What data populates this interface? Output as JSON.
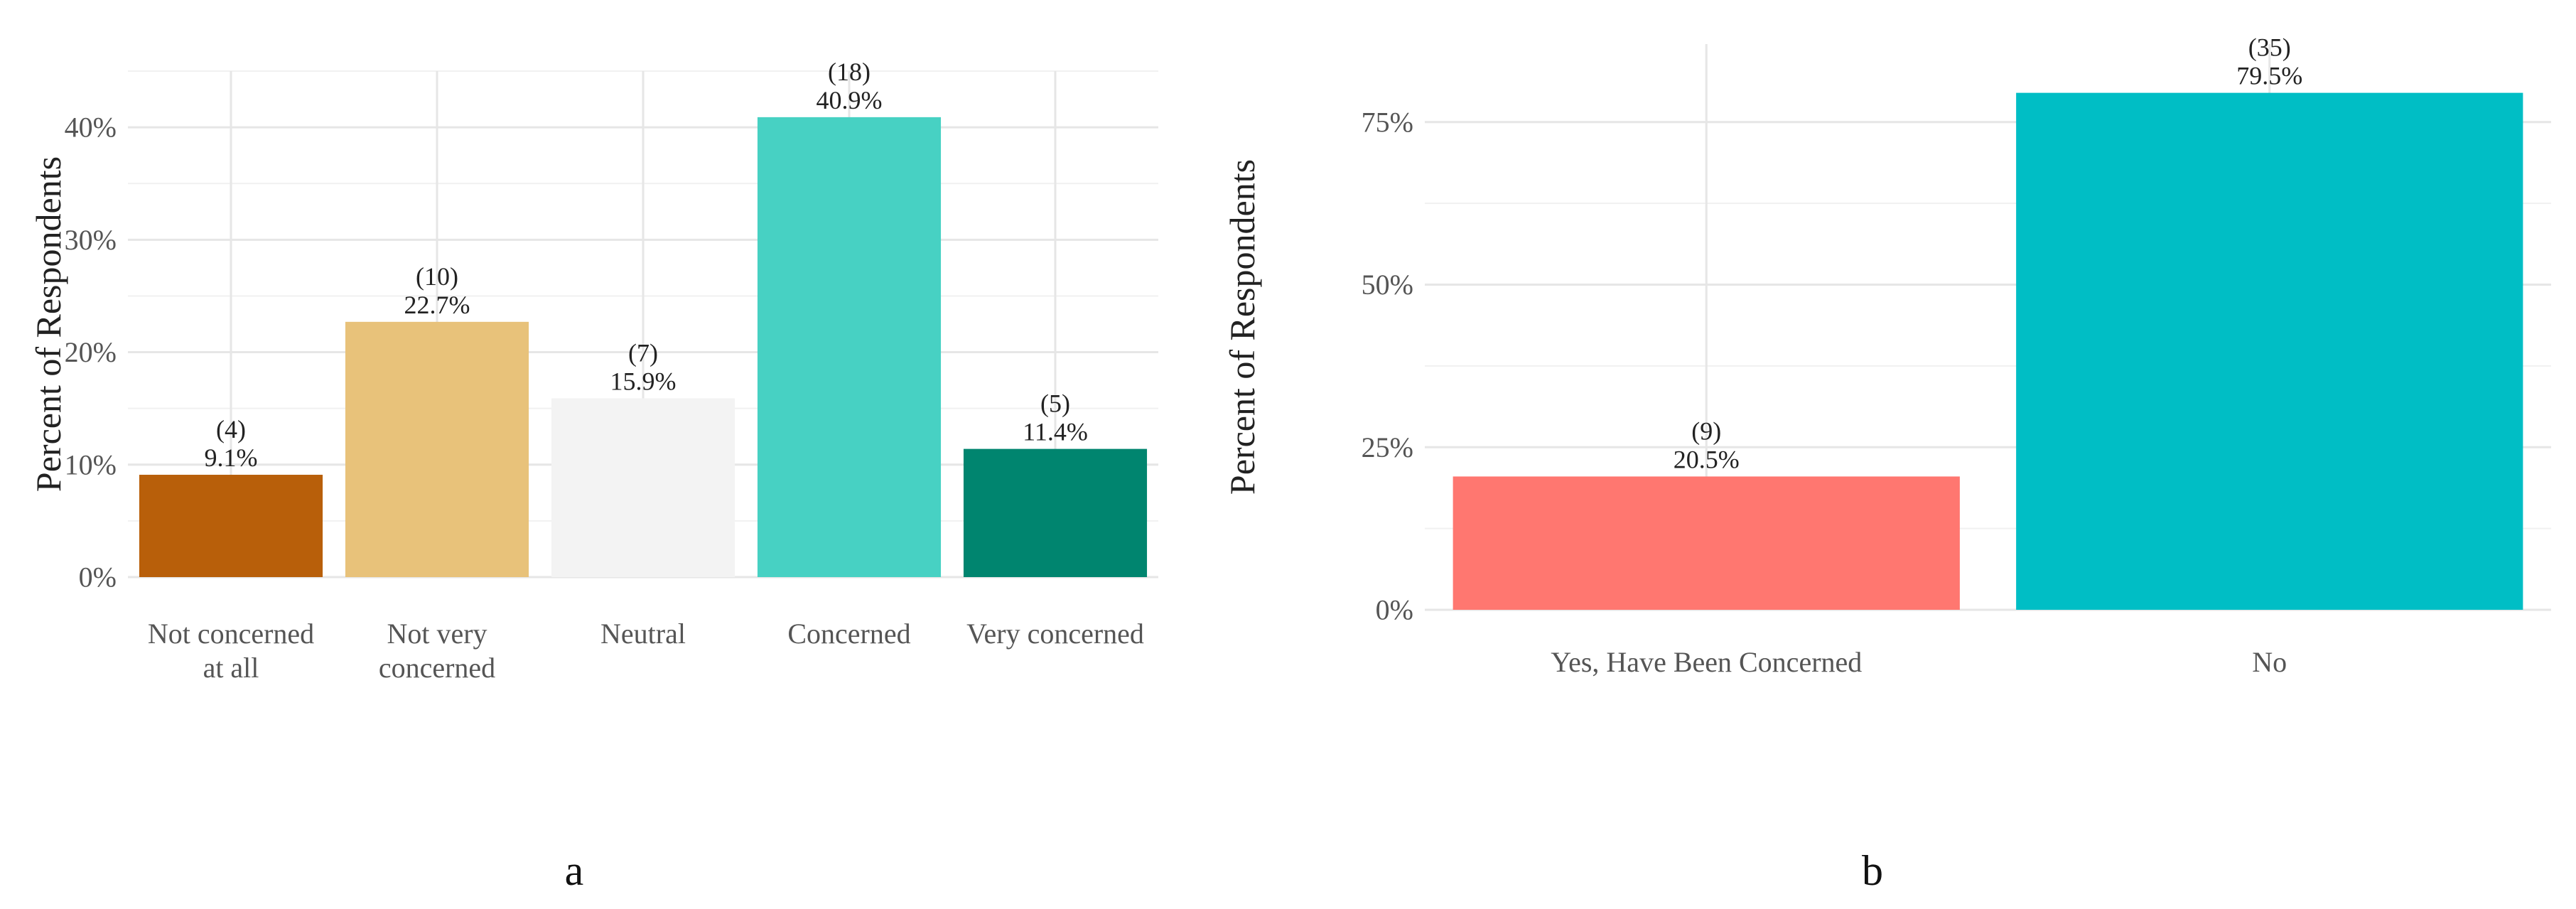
{
  "chart_data": [
    {
      "type": "bar",
      "panel_label": "a",
      "ylabel": "Percent of Respondents",
      "xlabel": "",
      "ylim": [
        0,
        45
      ],
      "y_ticks": [
        0,
        10,
        20,
        30,
        40
      ],
      "y_tick_labels": [
        "0%",
        "10%",
        "20%",
        "30%",
        "40%"
      ],
      "categories": [
        [
          "Not concerned",
          "at all"
        ],
        [
          "Not very",
          "concerned"
        ],
        [
          "Neutral"
        ],
        [
          "Concerned"
        ],
        [
          "Very concerned"
        ]
      ],
      "values": [
        9.1,
        22.7,
        15.9,
        40.9,
        11.4
      ],
      "counts": [
        "(4)",
        "(10)",
        "(7)",
        "(18)",
        "(5)"
      ],
      "value_labels": [
        "9.1%",
        "22.7%",
        "15.9%",
        "40.9%",
        "11.4%"
      ],
      "colors": [
        "#B85F0A",
        "#E8C27A",
        "#F3F3F3",
        "#47D1C3",
        "#00856F"
      ],
      "grid": true
    },
    {
      "type": "bar",
      "panel_label": "b",
      "ylabel": "Percent of Respondents",
      "xlabel": "",
      "ylim": [
        0,
        87
      ],
      "y_ticks": [
        0,
        25,
        50,
        75
      ],
      "y_tick_labels": [
        "0%",
        "25%",
        "50%",
        "75%"
      ],
      "categories": [
        [
          "Yes, Have Been Concerned"
        ],
        [
          "No"
        ]
      ],
      "values": [
        20.5,
        79.5
      ],
      "counts": [
        "(9)",
        "(35)"
      ],
      "value_labels": [
        "20.5%",
        "79.5%"
      ],
      "colors": [
        "#FF7770",
        "#00BEC5"
      ],
      "grid": true
    }
  ]
}
